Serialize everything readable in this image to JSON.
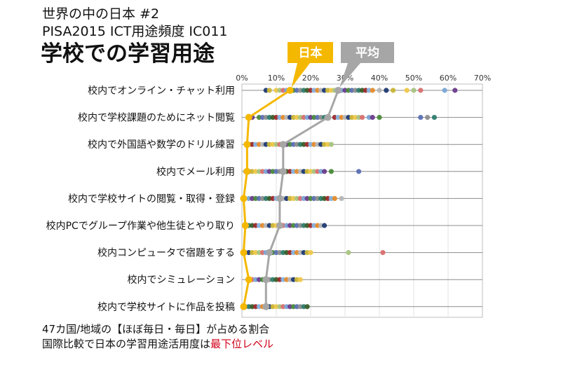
{
  "header": {
    "line1": "世界の中の日本 #2",
    "line2": "PISA2015 ICT用途頻度 IC011",
    "title": "学校での学習用途"
  },
  "legend": {
    "japan_label": "日本",
    "average_label": "平均",
    "japan_color": "#f5b800",
    "average_color": "#a6a6a6"
  },
  "footer": {
    "line1": "47カ国/地域の【ほぼ毎日・毎日】が占める割合",
    "line2_prefix": "国際比較で日本の学習用途活用度は",
    "line2_highlight": "最下位レベル"
  },
  "chart_data": {
    "type": "scatter",
    "x_ticks": [
      "0%",
      "10%",
      "20%",
      "30%",
      "40%",
      "50%",
      "60%",
      "70%"
    ],
    "xlim": [
      0,
      70
    ],
    "x_unit": "%",
    "grid": true,
    "categories": [
      "校内でオンライン・チャット利用",
      "校内で学校課題のためにネット閲覧",
      "校内で外国語や数学のドリル練習",
      "校内でメール利用",
      "校内で学校サイトの閲覧・取得・登録",
      "校内PCでグループ作業や他生徒とやり取り",
      "校内コンピュータで宿題をする",
      "校内でシミュレーション",
      "校内で学校サイトに作品を投稿"
    ],
    "series": [
      {
        "name": "日本",
        "values": [
          14,
          2,
          1.5,
          1.5,
          0.5,
          1,
          0.5,
          2,
          0.5
        ]
      },
      {
        "name": "平均",
        "values": [
          28,
          25,
          12,
          12,
          11,
          11,
          8,
          7,
          7
        ]
      }
    ],
    "country_values": [
      [
        7,
        8,
        10,
        11,
        12,
        13,
        14,
        15,
        16,
        17,
        18,
        19,
        20,
        21,
        22,
        23,
        24,
        25,
        26,
        27,
        28,
        29,
        30,
        31,
        32,
        33,
        34,
        35,
        36,
        37,
        38,
        40,
        42,
        44,
        48,
        50,
        52,
        59,
        62
      ],
      [
        2,
        3,
        5,
        6,
        7,
        8,
        9,
        10,
        11,
        12,
        13,
        14,
        15,
        16,
        17,
        18,
        19,
        20,
        21,
        22,
        23,
        24,
        25,
        27,
        28,
        29,
        30,
        31,
        32,
        33,
        34,
        35,
        37,
        38,
        40,
        52,
        54,
        56
      ],
      [
        1.5,
        2,
        3,
        4,
        5,
        6,
        7,
        8,
        9,
        10,
        11,
        12,
        13,
        14,
        15,
        16,
        17,
        18,
        19,
        20,
        21,
        22,
        23,
        24,
        25,
        26
      ],
      [
        1,
        2,
        3,
        4,
        5,
        6,
        7,
        8,
        9,
        10,
        11,
        12,
        13,
        14,
        15,
        16,
        17,
        18,
        19,
        20,
        21,
        22,
        23,
        24,
        26,
        34
      ],
      [
        0.5,
        2,
        3,
        4,
        5,
        6,
        7,
        8,
        9,
        10,
        11,
        12,
        13,
        14,
        15,
        16,
        17,
        18,
        19,
        20,
        21,
        22,
        23,
        24,
        25,
        26,
        27,
        29
      ],
      [
        1,
        2,
        3,
        4,
        5,
        6,
        7,
        8,
        9,
        10,
        11,
        12,
        13,
        14,
        15,
        16,
        17,
        18,
        19,
        20,
        21,
        22,
        23,
        24
      ],
      [
        0.5,
        1,
        2,
        3,
        4,
        5,
        6,
        7,
        8,
        9,
        10,
        11,
        12,
        13,
        14,
        15,
        16,
        17,
        18,
        19,
        20,
        31,
        41
      ],
      [
        2,
        3,
        4,
        5,
        6,
        7,
        8,
        9,
        10,
        11,
        12,
        13,
        14,
        15,
        16,
        17
      ],
      [
        0.5,
        1,
        2,
        3,
        4,
        5,
        6,
        7,
        8,
        9,
        10,
        11,
        12,
        13,
        14,
        15,
        16,
        17,
        18,
        19
      ]
    ],
    "dot_palette": [
      "#1f3b73",
      "#4a8a3a",
      "#e58b2b",
      "#7aa6d6",
      "#9c2a2a",
      "#a9c47f",
      "#2e7d6e",
      "#c9b437",
      "#5b6fb5",
      "#b6b6b6",
      "#6b3d8c",
      "#86b2e0",
      "#d96f6f",
      "#3a5f2a",
      "#f0c84a",
      "#8e8e8e"
    ]
  }
}
